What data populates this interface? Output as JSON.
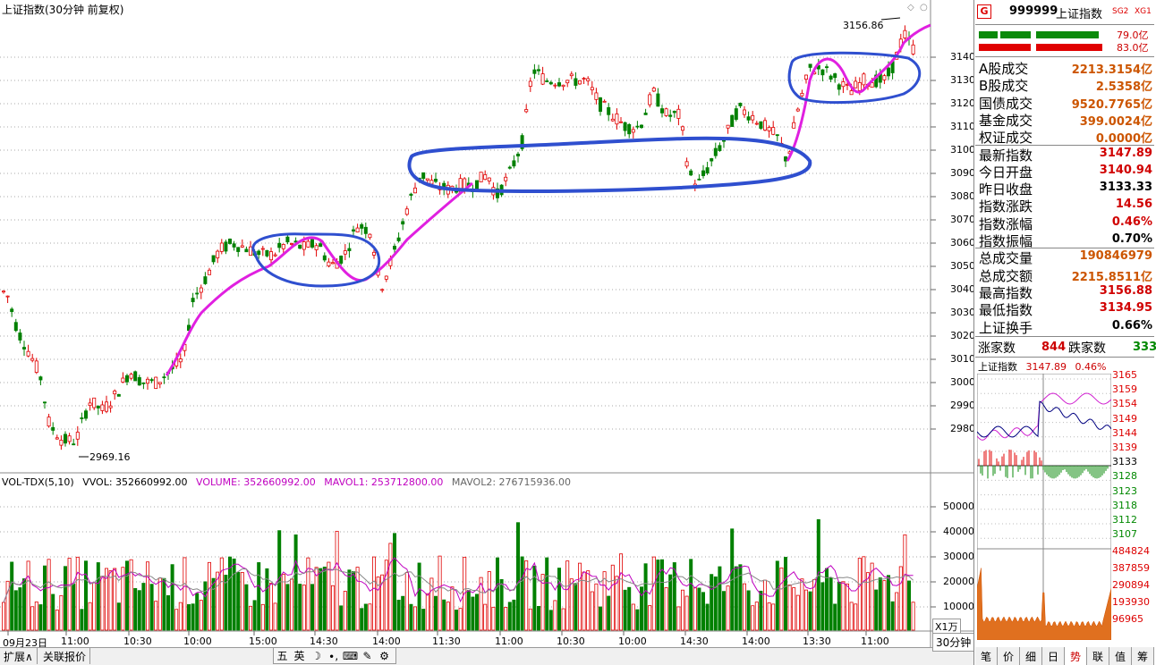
{
  "chart": {
    "title": "上证指数(30分钟 前复权)",
    "high_marker": "3156.86",
    "low_marker": "2969.16",
    "price_axis": [
      "3140",
      "3130",
      "3120",
      "3110",
      "3100",
      "3090",
      "3080",
      "3070",
      "3060",
      "3050",
      "3040",
      "3030",
      "3020",
      "3010",
      "3000",
      "2990",
      "2980"
    ],
    "volume_axis": [
      "50000",
      "40000",
      "30000",
      "20000",
      "10000"
    ],
    "x_unit": "X1万",
    "time_labels": [
      "09月23日",
      "11:00",
      "10:30",
      "10:00",
      "15:00",
      "14:30",
      "14:00",
      "11:30",
      "11:00",
      "10:30",
      "10:00",
      "14:30",
      "14:00",
      "13:30",
      "11:00"
    ],
    "period": "30分钟"
  },
  "volume_indicator": {
    "name": "VOL-TDX(5,10)",
    "vvol": "VVOL: 352660992.00",
    "volume": "VOLUME: 352660992.00",
    "mavol1": "MAVOL1: 253712800.00",
    "mavol2": "MAVOL2: 276715936.00"
  },
  "bottom_tabs": [
    "扩展∧",
    "关联报价"
  ],
  "ime": [
    "五",
    "英",
    "☽",
    "∙,",
    "⌨",
    "✎",
    "⚙"
  ],
  "side": {
    "icon": "G",
    "code": "999999",
    "name": "上证指数",
    "sg2": "SG2",
    "xg1": "XG1",
    "bar1_value": "79.0亿",
    "bar2_value": "83.0亿",
    "stats": [
      {
        "label": "A股成交",
        "value": "2213.3154亿"
      },
      {
        "label": "B股成交",
        "value": "2.5358亿"
      },
      {
        "label": "国债成交",
        "value": "9520.7765亿"
      },
      {
        "label": "基金成交",
        "value": "399.0024亿"
      },
      {
        "label": "权证成交",
        "value": "0.0000亿"
      },
      {
        "label": "最新指数",
        "value": "3147.89"
      },
      {
        "label": "今日开盘",
        "value": "3140.94"
      },
      {
        "label": "昨日收盘",
        "value": "3133.33"
      },
      {
        "label": "指数涨跌",
        "value": "14.56"
      },
      {
        "label": "指数涨幅",
        "value": "0.46%"
      },
      {
        "label": "指数振幅",
        "value": "0.70%"
      },
      {
        "label": "总成交量",
        "value": "190846979"
      },
      {
        "label": "总成交额",
        "value": "2215.8511亿"
      },
      {
        "label": "最高指数",
        "value": "3156.88"
      },
      {
        "label": "最低指数",
        "value": "3134.95"
      },
      {
        "label": "上证换手",
        "value": "0.66%"
      }
    ],
    "up_label": "涨家数",
    "up_value": "844",
    "down_label": "跌家数",
    "down_value": "333",
    "mini_title": "上证指数",
    "mini_price": "3147.89",
    "mini_pct": "0.46%",
    "mini_axis": [
      "3165",
      "3159",
      "3154",
      "3149",
      "3144",
      "3139",
      "3133",
      "3128",
      "3123",
      "3118",
      "3112",
      "3107"
    ],
    "mini_vol_axis": [
      "484824",
      "387859",
      "290894",
      "193930",
      "96965"
    ],
    "tabs": [
      "笔",
      "价",
      "细",
      "日",
      "势",
      "联",
      "值",
      "筹"
    ]
  },
  "colors": {
    "up": "#e00000",
    "down": "#008000",
    "ma_line": "#e020e0",
    "annotation": "#2f4fcf"
  }
}
